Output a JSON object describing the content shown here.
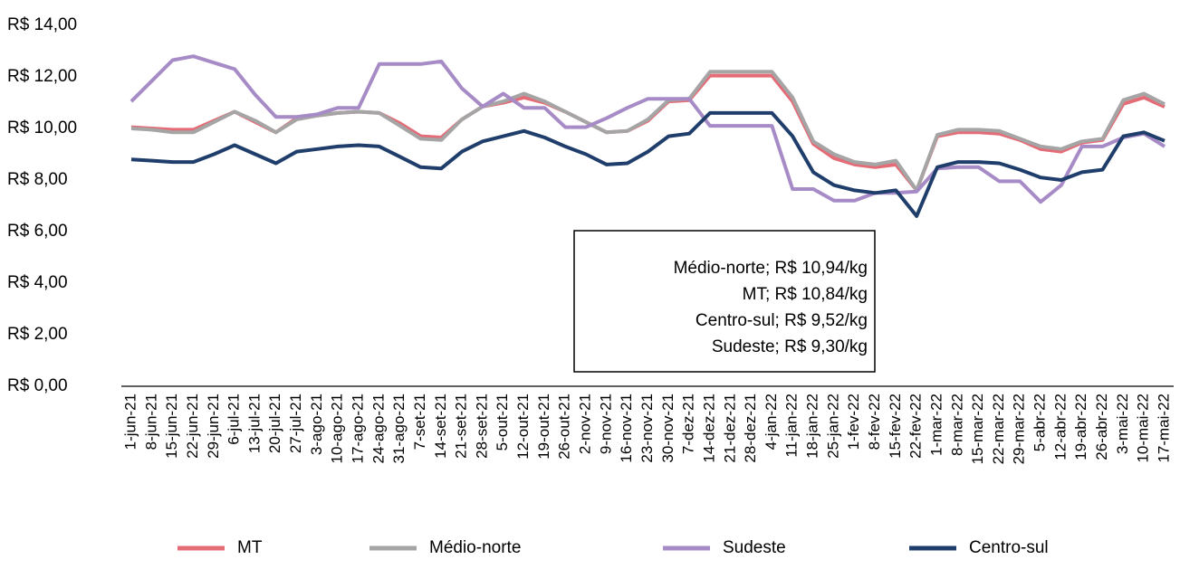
{
  "chart_data": {
    "type": "line",
    "categories": [
      "1-jun-21",
      "8-jun-21",
      "15-jun-21",
      "22-jun-21",
      "29-jun-21",
      "6-jul-21",
      "13-jul-21",
      "20-jul-21",
      "27-jul-21",
      "3-ago-21",
      "10-ago-21",
      "17-ago-21",
      "24-ago-21",
      "31-ago-21",
      "7-set-21",
      "14-set-21",
      "21-set-21",
      "28-set-21",
      "5-out-21",
      "12-out-21",
      "19-out-21",
      "26-out-21",
      "2-nov-21",
      "9-nov-21",
      "16-nov-21",
      "23-nov-21",
      "30-nov-21",
      "7-dez-21",
      "14-dez-21",
      "21-dez-21",
      "28-dez-21",
      "4-jan-22",
      "11-jan-22",
      "18-jan-22",
      "25-jan-22",
      "1-fev-22",
      "8-fev-22",
      "15-fev-22",
      "22-fev-22",
      "1-mar-22",
      "8-mar-22",
      "15-mar-22",
      "22-mar-22",
      "29-mar-22",
      "5-abr-22",
      "12-abr-22",
      "19-abr-22",
      "26-abr-22",
      "3-mai-22",
      "10-mai-22",
      "17-mai-22"
    ],
    "series": [
      {
        "name": "MT",
        "color": "#e46c77",
        "values": [
          10.05,
          10.0,
          9.95,
          9.95,
          10.3,
          10.65,
          10.25,
          9.85,
          10.4,
          10.5,
          10.6,
          10.65,
          10.6,
          10.2,
          9.7,
          9.65,
          10.35,
          10.85,
          11.0,
          11.2,
          11.0,
          10.65,
          10.25,
          9.85,
          9.9,
          10.3,
          11.05,
          11.1,
          12.05,
          12.05,
          12.05,
          12.05,
          11.05,
          9.4,
          8.85,
          8.6,
          8.5,
          8.6,
          7.6,
          9.7,
          9.85,
          9.85,
          9.8,
          9.55,
          9.2,
          9.1,
          9.45,
          9.55,
          10.95,
          11.2,
          10.84
        ]
      },
      {
        "name": "Médio-norte",
        "color": "#a5a5a5",
        "values": [
          10.0,
          9.95,
          9.85,
          9.85,
          10.25,
          10.65,
          10.3,
          9.85,
          10.35,
          10.5,
          10.6,
          10.65,
          10.6,
          10.1,
          9.6,
          9.55,
          10.35,
          10.85,
          11.05,
          11.35,
          11.05,
          10.65,
          10.25,
          9.85,
          9.9,
          10.35,
          11.1,
          11.15,
          12.2,
          12.2,
          12.2,
          12.2,
          11.2,
          9.5,
          9.0,
          8.7,
          8.6,
          8.75,
          7.6,
          9.75,
          9.95,
          9.95,
          9.9,
          9.6,
          9.3,
          9.2,
          9.5,
          9.6,
          11.1,
          11.35,
          10.94
        ]
      },
      {
        "name": "Sudeste",
        "color": "#a68bc6",
        "values": [
          11.05,
          11.85,
          12.65,
          12.8,
          12.55,
          12.3,
          11.3,
          10.45,
          10.45,
          10.55,
          10.8,
          10.8,
          12.5,
          12.5,
          12.5,
          12.6,
          11.55,
          10.85,
          11.35,
          10.8,
          10.8,
          10.05,
          10.05,
          10.4,
          10.8,
          11.15,
          11.15,
          11.15,
          10.1,
          10.1,
          10.1,
          10.1,
          7.65,
          7.65,
          7.2,
          7.2,
          7.5,
          7.5,
          7.55,
          8.45,
          8.5,
          8.5,
          7.95,
          7.95,
          7.15,
          7.8,
          9.3,
          9.3,
          9.65,
          9.8,
          9.3
        ]
      },
      {
        "name": "Centro-sul",
        "color": "#203e6b",
        "values": [
          8.8,
          8.75,
          8.7,
          8.7,
          9.0,
          9.35,
          9.0,
          8.65,
          9.1,
          9.2,
          9.3,
          9.35,
          9.3,
          8.9,
          8.5,
          8.45,
          9.1,
          9.5,
          9.7,
          9.9,
          9.65,
          9.3,
          9.0,
          8.6,
          8.65,
          9.1,
          9.7,
          9.8,
          10.6,
          10.6,
          10.6,
          10.6,
          9.7,
          8.3,
          7.8,
          7.6,
          7.5,
          7.6,
          6.6,
          8.5,
          8.7,
          8.7,
          8.65,
          8.4,
          8.1,
          8.0,
          8.3,
          8.4,
          9.7,
          9.85,
          9.52
        ]
      }
    ],
    "ylim": [
      0,
      14
    ],
    "yticks": [
      {
        "value": 0,
        "label": "R$ 0,00"
      },
      {
        "value": 2,
        "label": "R$ 2,00"
      },
      {
        "value": 4,
        "label": "R$ 4,00"
      },
      {
        "value": 6,
        "label": "R$ 6,00"
      },
      {
        "value": 8,
        "label": "R$ 8,00"
      },
      {
        "value": 10,
        "label": "R$ 10,00"
      },
      {
        "value": 12,
        "label": "R$ 12,00"
      },
      {
        "value": 14,
        "label": "R$ 14,00"
      }
    ],
    "grid": false,
    "legend": "bottom",
    "annotation": [
      "Médio-norte; R$ 10,94/kg",
      "MT; R$ 10,84/kg",
      "Centro-sul; R$ 9,52/kg",
      "Sudeste; R$ 9,30/kg"
    ]
  }
}
